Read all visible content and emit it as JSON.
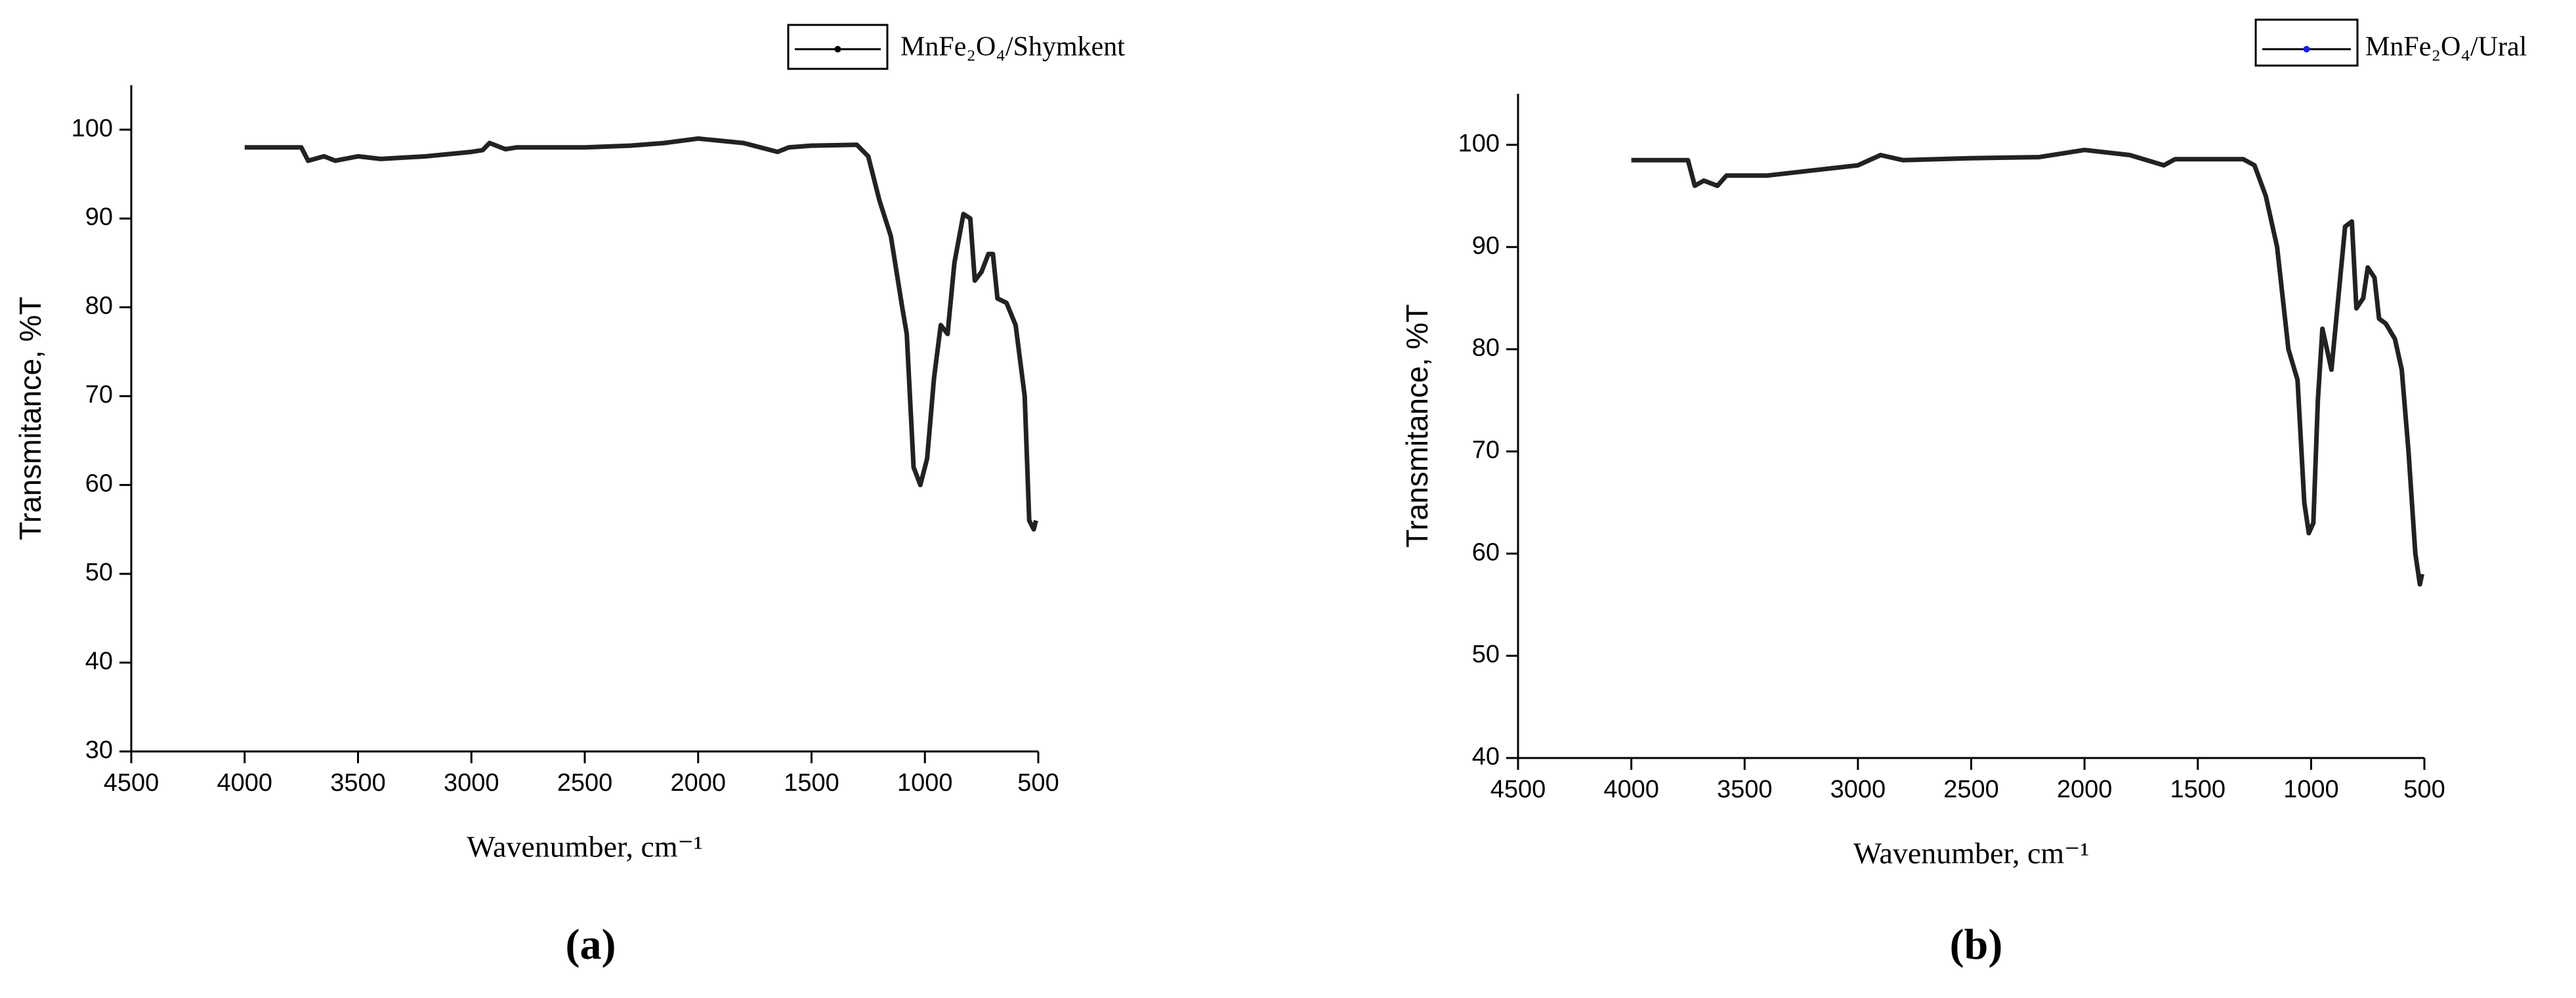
{
  "chart_data": [
    {
      "type": "line",
      "panel_label": "(a)",
      "xlabel": "Wavenumber, cm⁻¹",
      "ylabel": "Transmitance, %T",
      "xlim": [
        4500,
        500
      ],
      "ylim": [
        30,
        105
      ],
      "xticks": [
        4500,
        4000,
        3500,
        3000,
        2500,
        2000,
        1500,
        1000,
        500
      ],
      "yticks": [
        30,
        40,
        50,
        60,
        70,
        80,
        90,
        100
      ],
      "x": [
        4000,
        3750,
        3720,
        3650,
        3600,
        3500,
        3400,
        3200,
        3000,
        2950,
        2920,
        2850,
        2800,
        2500,
        2300,
        2150,
        2000,
        1800,
        1650,
        1600,
        1500,
        1300,
        1250,
        1200,
        1150,
        1100,
        1080,
        1050,
        1020,
        990,
        960,
        930,
        900,
        870,
        830,
        800,
        780,
        750,
        720,
        700,
        680,
        640,
        600,
        560,
        540,
        520,
        510
      ],
      "series": [
        {
          "name": "MnFe₂O₄/Shymkent",
          "color": "#222222",
          "legend_marker_color": "#000000",
          "values": [
            98,
            98,
            96.5,
            97,
            96.5,
            97,
            96.7,
            97,
            97.5,
            97.7,
            98.5,
            97.8,
            98,
            98,
            98.2,
            98.5,
            99,
            98.5,
            97.5,
            98,
            98.2,
            98.3,
            97,
            92,
            88,
            80,
            77,
            62,
            60,
            63,
            72,
            78,
            77,
            85,
            90.5,
            90,
            83,
            84,
            86,
            86,
            81,
            80.5,
            78,
            70,
            56,
            55,
            56
          ]
        }
      ]
    },
    {
      "type": "line",
      "panel_label": "(b)",
      "xlabel": "Wavenumber, cm⁻¹",
      "ylabel": "Transmitance, %T",
      "xlim": [
        4500,
        500
      ],
      "ylim": [
        40,
        105
      ],
      "xticks": [
        4500,
        4000,
        3500,
        3000,
        2500,
        2000,
        1500,
        1000,
        500
      ],
      "yticks": [
        40,
        50,
        60,
        70,
        80,
        90,
        100
      ],
      "x": [
        4000,
        3750,
        3720,
        3680,
        3620,
        3580,
        3400,
        3000,
        2900,
        2800,
        2500,
        2200,
        2000,
        1800,
        1650,
        1600,
        1300,
        1250,
        1200,
        1150,
        1100,
        1060,
        1030,
        1010,
        990,
        970,
        950,
        930,
        910,
        880,
        850,
        820,
        800,
        770,
        750,
        720,
        700,
        670,
        630,
        600,
        570,
        540,
        520,
        510
      ],
      "series": [
        {
          "name": "MnFe₂O₄/Ural",
          "color": "#222222",
          "legend_marker_color": "#1a1aff",
          "values": [
            98.5,
            98.5,
            96,
            96.5,
            96,
            97,
            97,
            98,
            99,
            98.5,
            98.7,
            98.8,
            99.5,
            99,
            98,
            98.6,
            98.6,
            98,
            95,
            90,
            80,
            77,
            65,
            62,
            63,
            75,
            82,
            80,
            78,
            85,
            92,
            92.5,
            84,
            85,
            88,
            87,
            83,
            82.5,
            81,
            78,
            70,
            60,
            57,
            58
          ]
        }
      ]
    }
  ]
}
